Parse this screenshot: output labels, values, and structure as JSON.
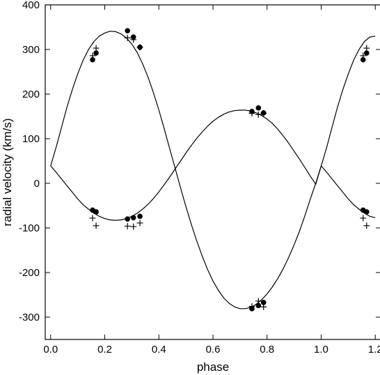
{
  "chart_data": {
    "type": "scatter",
    "xlabel": "phase",
    "ylabel": "radial velocity (km/s)",
    "xlim": [
      -0.02,
      1.22
    ],
    "ylim": [
      -350,
      400
    ],
    "xticks": [
      0.0,
      0.2,
      0.4,
      0.6,
      0.8,
      1.0,
      1.2
    ],
    "xtick_labels": [
      "0.0",
      "0.2",
      "0.4",
      "0.6",
      "0.8",
      "1.0",
      "1.2"
    ],
    "yticks": [
      -300,
      -200,
      -100,
      0,
      100,
      200,
      300,
      400
    ],
    "ytick_labels": [
      "-300",
      "-200",
      "-100",
      "0",
      "100",
      "200",
      "300",
      "400"
    ],
    "grid": false,
    "colors": {
      "ink": "#000000",
      "background": "#ffffff"
    },
    "curves": [
      {
        "marker": "line",
        "x": [
          0.0,
          0.02,
          0.04,
          0.06,
          0.08,
          0.1,
          0.12,
          0.14,
          0.16,
          0.18,
          0.2,
          0.22,
          0.24,
          0.26,
          0.28,
          0.3,
          0.32,
          0.34,
          0.36,
          0.38,
          0.4,
          0.42,
          0.44,
          0.46,
          0.48,
          0.5,
          0.52,
          0.54,
          0.56,
          0.58,
          0.6,
          0.62,
          0.64,
          0.66,
          0.68,
          0.7,
          0.72,
          0.74,
          0.76,
          0.78,
          0.8,
          0.82,
          0.84,
          0.86,
          0.88,
          0.9,
          0.92,
          0.94,
          0.96,
          0.98,
          1.0,
          1.02,
          1.04,
          1.06,
          1.08,
          1.1,
          1.12,
          1.14,
          1.16,
          1.18,
          1.2
        ],
        "y": [
          39,
          80,
          125,
          170,
          210,
          245,
          276,
          300,
          318,
          330,
          337,
          341,
          340,
          335,
          326,
          312,
          293,
          268,
          238,
          203,
          164,
          122,
          78,
          34,
          -10,
          -52,
          -92,
          -129,
          -163,
          -193,
          -219,
          -240,
          -257,
          -269,
          -277,
          -281,
          -281,
          -278,
          -271,
          -261,
          -248,
          -232,
          -213,
          -191,
          -166,
          -138,
          -107,
          -72,
          -35,
          0,
          39,
          80,
          125,
          170,
          210,
          245,
          276,
          300,
          318,
          328,
          330
        ]
      },
      {
        "marker": "line",
        "x": [
          0.0,
          0.02,
          0.04,
          0.06,
          0.08,
          0.1,
          0.12,
          0.14,
          0.16,
          0.18,
          0.2,
          0.22,
          0.24,
          0.26,
          0.28,
          0.3,
          0.32,
          0.34,
          0.36,
          0.38,
          0.4,
          0.42,
          0.44,
          0.46,
          0.48,
          0.5,
          0.52,
          0.54,
          0.56,
          0.58,
          0.6,
          0.62,
          0.64,
          0.66,
          0.68,
          0.7,
          0.72,
          0.74,
          0.76,
          0.78,
          0.8,
          0.82,
          0.84,
          0.86,
          0.88,
          0.9,
          0.92,
          0.94,
          0.96,
          0.98,
          1.0,
          1.02,
          1.04,
          1.06,
          1.08,
          1.1,
          1.12,
          1.14,
          1.16,
          1.18,
          1.2
        ],
        "y": [
          39,
          25,
          10,
          -5,
          -20,
          -35,
          -48,
          -58,
          -67,
          -74,
          -79,
          -82,
          -83,
          -82,
          -79,
          -74,
          -67,
          -58,
          -47,
          -34,
          -19,
          -3,
          14,
          32,
          50,
          68,
          85,
          101,
          115,
          128,
          139,
          148,
          155,
          160,
          163,
          164,
          164,
          162,
          158,
          152,
          144,
          134,
          121,
          106,
          90,
          72,
          54,
          35,
          16,
          -2,
          39,
          25,
          10,
          -5,
          -20,
          -35,
          -48,
          -58,
          -67,
          -74,
          -77
        ]
      }
    ],
    "series": [
      {
        "marker": "filled-circle",
        "x": [
          0.155,
          0.168,
          0.284,
          0.306,
          0.33,
          0.744,
          0.768,
          0.787,
          1.155,
          1.168
        ],
        "y": [
          277,
          292,
          342,
          328,
          305,
          -281,
          -274,
          -267,
          277,
          292
        ]
      },
      {
        "marker": "plus",
        "x": [
          0.155,
          0.168,
          0.284,
          0.306,
          0.33,
          0.744,
          0.768,
          0.787,
          1.155,
          1.168
        ],
        "y": [
          286,
          303,
          326,
          322,
          305,
          -276,
          -264,
          -277,
          286,
          303
        ]
      },
      {
        "marker": "filled-circle",
        "x": [
          0.155,
          0.168,
          0.284,
          0.306,
          0.33,
          0.744,
          0.768,
          0.787,
          1.155,
          1.168
        ],
        "y": [
          -60,
          -64,
          -80,
          -77,
          -74,
          161,
          169,
          158,
          -60,
          -64
        ]
      },
      {
        "marker": "plus",
        "x": [
          0.155,
          0.168,
          0.284,
          0.306,
          0.33,
          0.744,
          0.768,
          0.787,
          1.155,
          1.168
        ],
        "y": [
          -78,
          -95,
          -96,
          -97,
          -89,
          157,
          154,
          157,
          -78,
          -95
        ]
      }
    ]
  }
}
